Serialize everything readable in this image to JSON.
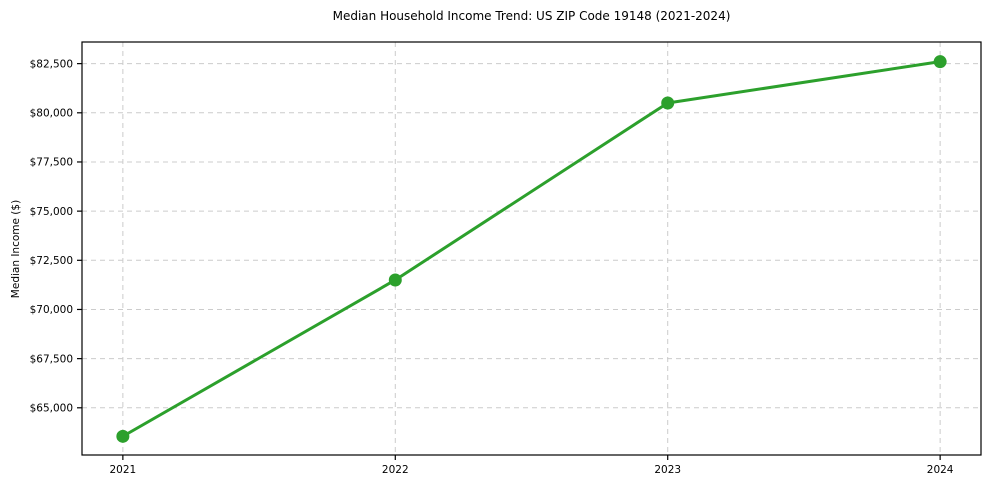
{
  "chart_data": {
    "type": "line",
    "title": "Median Household Income Trend: US ZIP Code 19148 (2021-2024)",
    "xlabel": "",
    "ylabel": "Median Income ($)",
    "x": [
      2021,
      2022,
      2023,
      2024
    ],
    "x_labels": [
      "2021",
      "2022",
      "2023",
      "2024"
    ],
    "series": [
      {
        "name": "Median Household Income",
        "values": [
          63550,
          71500,
          80500,
          82600
        ]
      }
    ],
    "xlim": [
      2020.85,
      2024.15
    ],
    "ylim": [
      62600,
      83600
    ],
    "ytick_values": [
      65000,
      67500,
      70000,
      72500,
      75000,
      77500,
      80000,
      82500
    ],
    "ytick_labels": [
      "$65,000",
      "$67,500",
      "$70,000",
      "$72,500",
      "$75,000",
      "$77,500",
      "$80,000",
      "$82,500"
    ],
    "grid": true,
    "grid_style": "dashed",
    "grid_color": "#cccccc",
    "line_color": "#2ca02c",
    "marker": "circle",
    "marker_color": "#2ca02c",
    "axis_color": "#000000",
    "legend_position": "none"
  }
}
